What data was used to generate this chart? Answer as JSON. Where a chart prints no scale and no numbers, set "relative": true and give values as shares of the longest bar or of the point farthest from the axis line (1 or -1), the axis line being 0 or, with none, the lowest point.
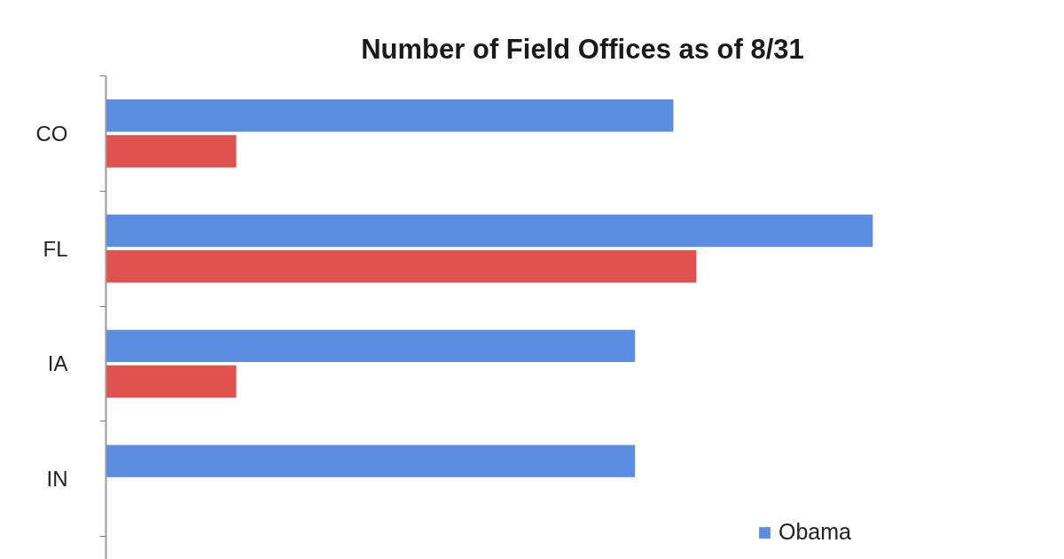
{
  "chart_data": {
    "type": "bar",
    "title": "Number of Field Offices as of 8/31",
    "orientation": "horizontal",
    "relative": true,
    "categories": [
      "CO",
      "FL",
      "IA",
      "IN"
    ],
    "series": [
      {
        "name": "Obama",
        "color": "#5b8de0",
        "values": [
          0.74,
          1,
          0.69,
          0.69
        ]
      },
      {
        "color": "#e0524f",
        "values": [
          0.17,
          0.77,
          0.17,
          null
        ]
      }
    ],
    "legend": "bottom right"
  }
}
